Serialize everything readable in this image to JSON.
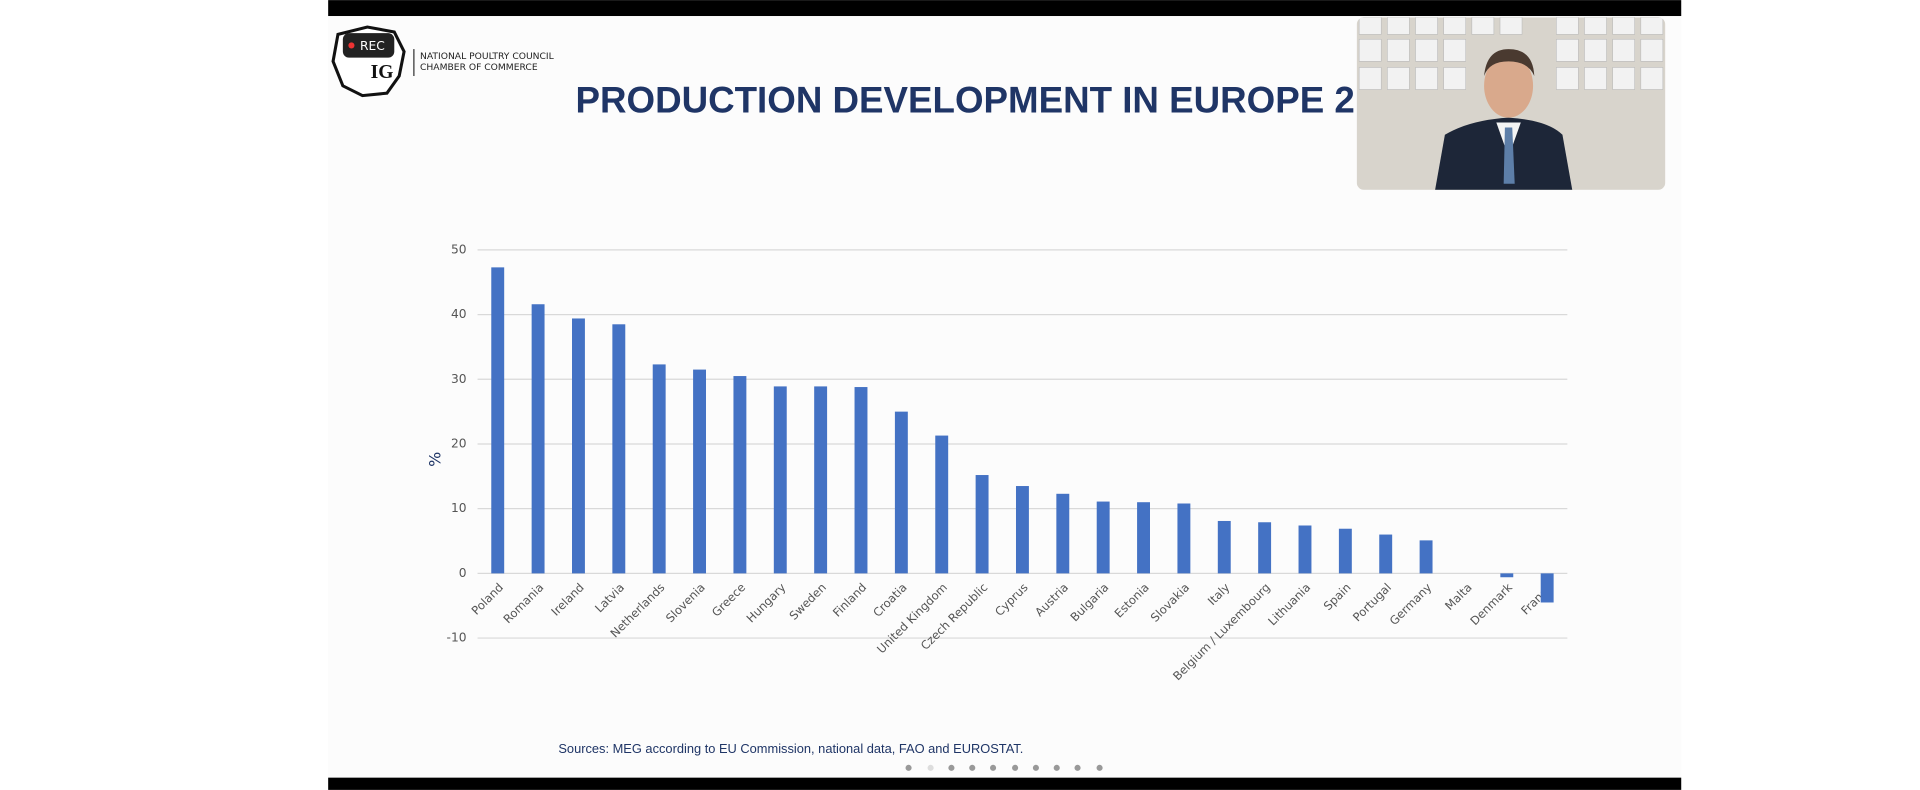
{
  "logo": {
    "badge": "REC",
    "mark": "IG",
    "line1": "NATIONAL POULTRY COUNCIL",
    "line2": "CHAMBER OF COMMERCE"
  },
  "chart_data": {
    "type": "bar",
    "title": "PRODUCTION DEVELOPMENT IN EUROPE 2",
    "ylabel": "%",
    "categories": [
      "Poland",
      "Romania",
      "Ireland",
      "Latvia",
      "Netherlands",
      "Slovenia",
      "Greece",
      "Hungary",
      "Sweden",
      "Finland",
      "Croatia",
      "United Kingdom",
      "Czech Republic",
      "Cyprus",
      "Austria",
      "Bulgaria",
      "Estonia",
      "Slovakia",
      "Italy",
      "Belgium / Luxembourg",
      "Lithuania",
      "Spain",
      "Portugal",
      "Germany",
      "Malta",
      "Denmark",
      "France"
    ],
    "values": [
      47.3,
      41.6,
      39.4,
      38.5,
      32.3,
      31.5,
      30.5,
      28.9,
      28.9,
      28.8,
      25.0,
      21.3,
      15.2,
      13.5,
      12.3,
      11.1,
      11.0,
      10.8,
      8.1,
      7.9,
      7.4,
      6.9,
      6.0,
      5.1,
      0,
      -0.6,
      -4.5
    ],
    "color": "#4472c4",
    "ylim": [
      -10,
      50
    ],
    "yticks": [
      -10,
      0,
      10,
      20,
      30,
      40,
      50
    ],
    "grid": true,
    "source": "Sources: MEG according to EU Commission, national data, FAO and EUROSTAT."
  }
}
